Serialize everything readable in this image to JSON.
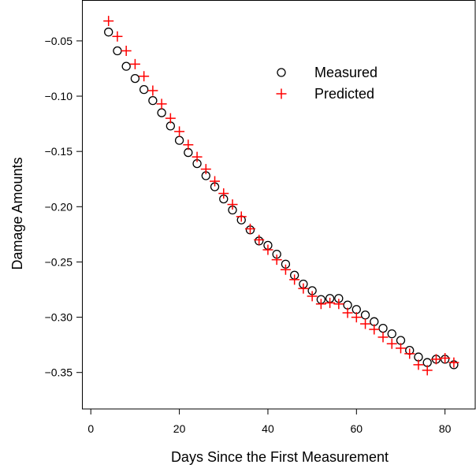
{
  "chart_data": {
    "type": "scatter",
    "title": "",
    "xlabel": "Days Since the First Measurement",
    "ylabel": "Damage Amounts",
    "xlim": [
      -2,
      87
    ],
    "ylim": [
      -0.383,
      -0.013
    ],
    "x_ticks": [
      0,
      20,
      40,
      60,
      80
    ],
    "y_ticks": [
      -0.35,
      -0.3,
      -0.25,
      -0.2,
      -0.15,
      -0.1,
      -0.05
    ],
    "x_tick_labels": [
      "0",
      "20",
      "40",
      "60",
      "80"
    ],
    "y_tick_labels": [
      "−0.35",
      "−0.30",
      "−0.25",
      "−0.20",
      "−0.15",
      "−0.10",
      "−0.05"
    ],
    "grid": false,
    "legend_position": "top-right",
    "series": [
      {
        "name": "Measured",
        "marker": "circle",
        "color": "#000000",
        "x": [
          4,
          6,
          8,
          10,
          12,
          14,
          16,
          18,
          20,
          22,
          24,
          26,
          28,
          30,
          32,
          34,
          36,
          38,
          40,
          42,
          44,
          46,
          48,
          50,
          52,
          54,
          56,
          58,
          60,
          62,
          64,
          66,
          68,
          70,
          72,
          74,
          76,
          78,
          80,
          82
        ],
        "y": [
          -0.042,
          -0.059,
          -0.073,
          -0.084,
          -0.094,
          -0.104,
          -0.115,
          -0.127,
          -0.14,
          -0.151,
          -0.161,
          -0.172,
          -0.182,
          -0.193,
          -0.203,
          -0.212,
          -0.221,
          -0.231,
          -0.235,
          -0.243,
          -0.252,
          -0.262,
          -0.27,
          -0.276,
          -0.284,
          -0.283,
          -0.283,
          -0.289,
          -0.293,
          -0.298,
          -0.304,
          -0.31,
          -0.315,
          -0.321,
          -0.33,
          -0.336,
          -0.341,
          -0.338,
          -0.338,
          -0.343
        ]
      },
      {
        "name": "Predicted",
        "marker": "plus",
        "color": "#ff0000",
        "x": [
          4,
          6,
          8,
          10,
          12,
          14,
          16,
          18,
          20,
          22,
          24,
          26,
          28,
          30,
          32,
          34,
          36,
          38,
          40,
          42,
          44,
          46,
          48,
          50,
          52,
          54,
          56,
          58,
          60,
          62,
          64,
          66,
          68,
          70,
          72,
          74,
          76,
          78,
          80,
          82
        ],
        "y": [
          -0.032,
          -0.046,
          -0.059,
          -0.071,
          -0.082,
          -0.095,
          -0.107,
          -0.12,
          -0.132,
          -0.144,
          -0.155,
          -0.166,
          -0.177,
          -0.188,
          -0.198,
          -0.209,
          -0.22,
          -0.23,
          -0.239,
          -0.248,
          -0.257,
          -0.266,
          -0.274,
          -0.281,
          -0.288,
          -0.287,
          -0.288,
          -0.296,
          -0.3,
          -0.306,
          -0.311,
          -0.318,
          -0.324,
          -0.328,
          -0.333,
          -0.343,
          -0.348,
          -0.338,
          -0.337,
          -0.341
        ]
      }
    ]
  }
}
